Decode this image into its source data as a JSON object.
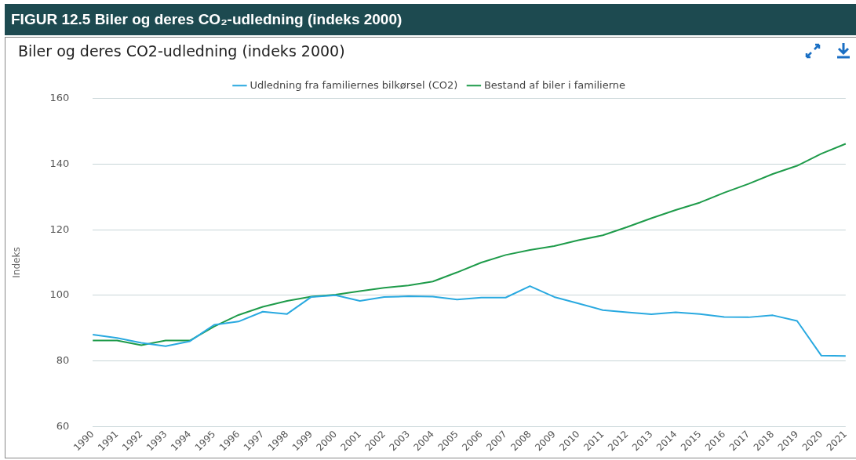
{
  "chart_data": {
    "type": "line",
    "title": "FIGUR 12.5 Biler og deres CO₂-udledning (indeks 2000)",
    "subtitle": "Biler og deres CO2-udledning (indeks 2000)",
    "ylabel": "Indeks",
    "categories": [
      "1990",
      "1991",
      "1992",
      "1993",
      "1994",
      "1995",
      "1996",
      "1997",
      "1998",
      "1999",
      "2000",
      "2001",
      "2002",
      "2003",
      "2004",
      "2005",
      "2006",
      "2007",
      "2008",
      "2009",
      "2010",
      "2011",
      "2012",
      "2013",
      "2014",
      "2015",
      "2016",
      "2017",
      "2018",
      "2019",
      "2020",
      "2021"
    ],
    "series": [
      {
        "name": "Udledning fra familiernes bilkørsel (CO2)",
        "color": "#29a9e0",
        "values": [
          88,
          87,
          85.5,
          84.5,
          86,
          91,
          92,
          95,
          94.3,
          99.5,
          100,
          98.3,
          99.5,
          99.7,
          99.6,
          98.7,
          99.3,
          99.3,
          102.8,
          99.5,
          97.5,
          95.5,
          94.8,
          94.2,
          94.8,
          94.3,
          93.4,
          93.3,
          93.9,
          92.2,
          81.6,
          81.5
        ]
      },
      {
        "name": "Bestand af biler i familierne",
        "color": "#1e9b4a",
        "values": [
          86.2,
          86.2,
          84.8,
          86.2,
          86.2,
          90.5,
          94,
          96.5,
          98.3,
          99.6,
          100.2,
          101.3,
          102.3,
          103,
          104.2,
          107,
          110,
          112.3,
          113.8,
          115,
          116.8,
          118.3,
          120.8,
          123.5,
          126,
          128.3,
          131.3,
          134,
          137,
          139.5,
          143.2,
          146.2
        ]
      }
    ],
    "ylim": [
      60,
      160
    ],
    "yticks": [
      60,
      80,
      100,
      120,
      140,
      160
    ],
    "grid": "y",
    "legend": "top",
    "marker": "none",
    "line_style": "solid"
  }
}
